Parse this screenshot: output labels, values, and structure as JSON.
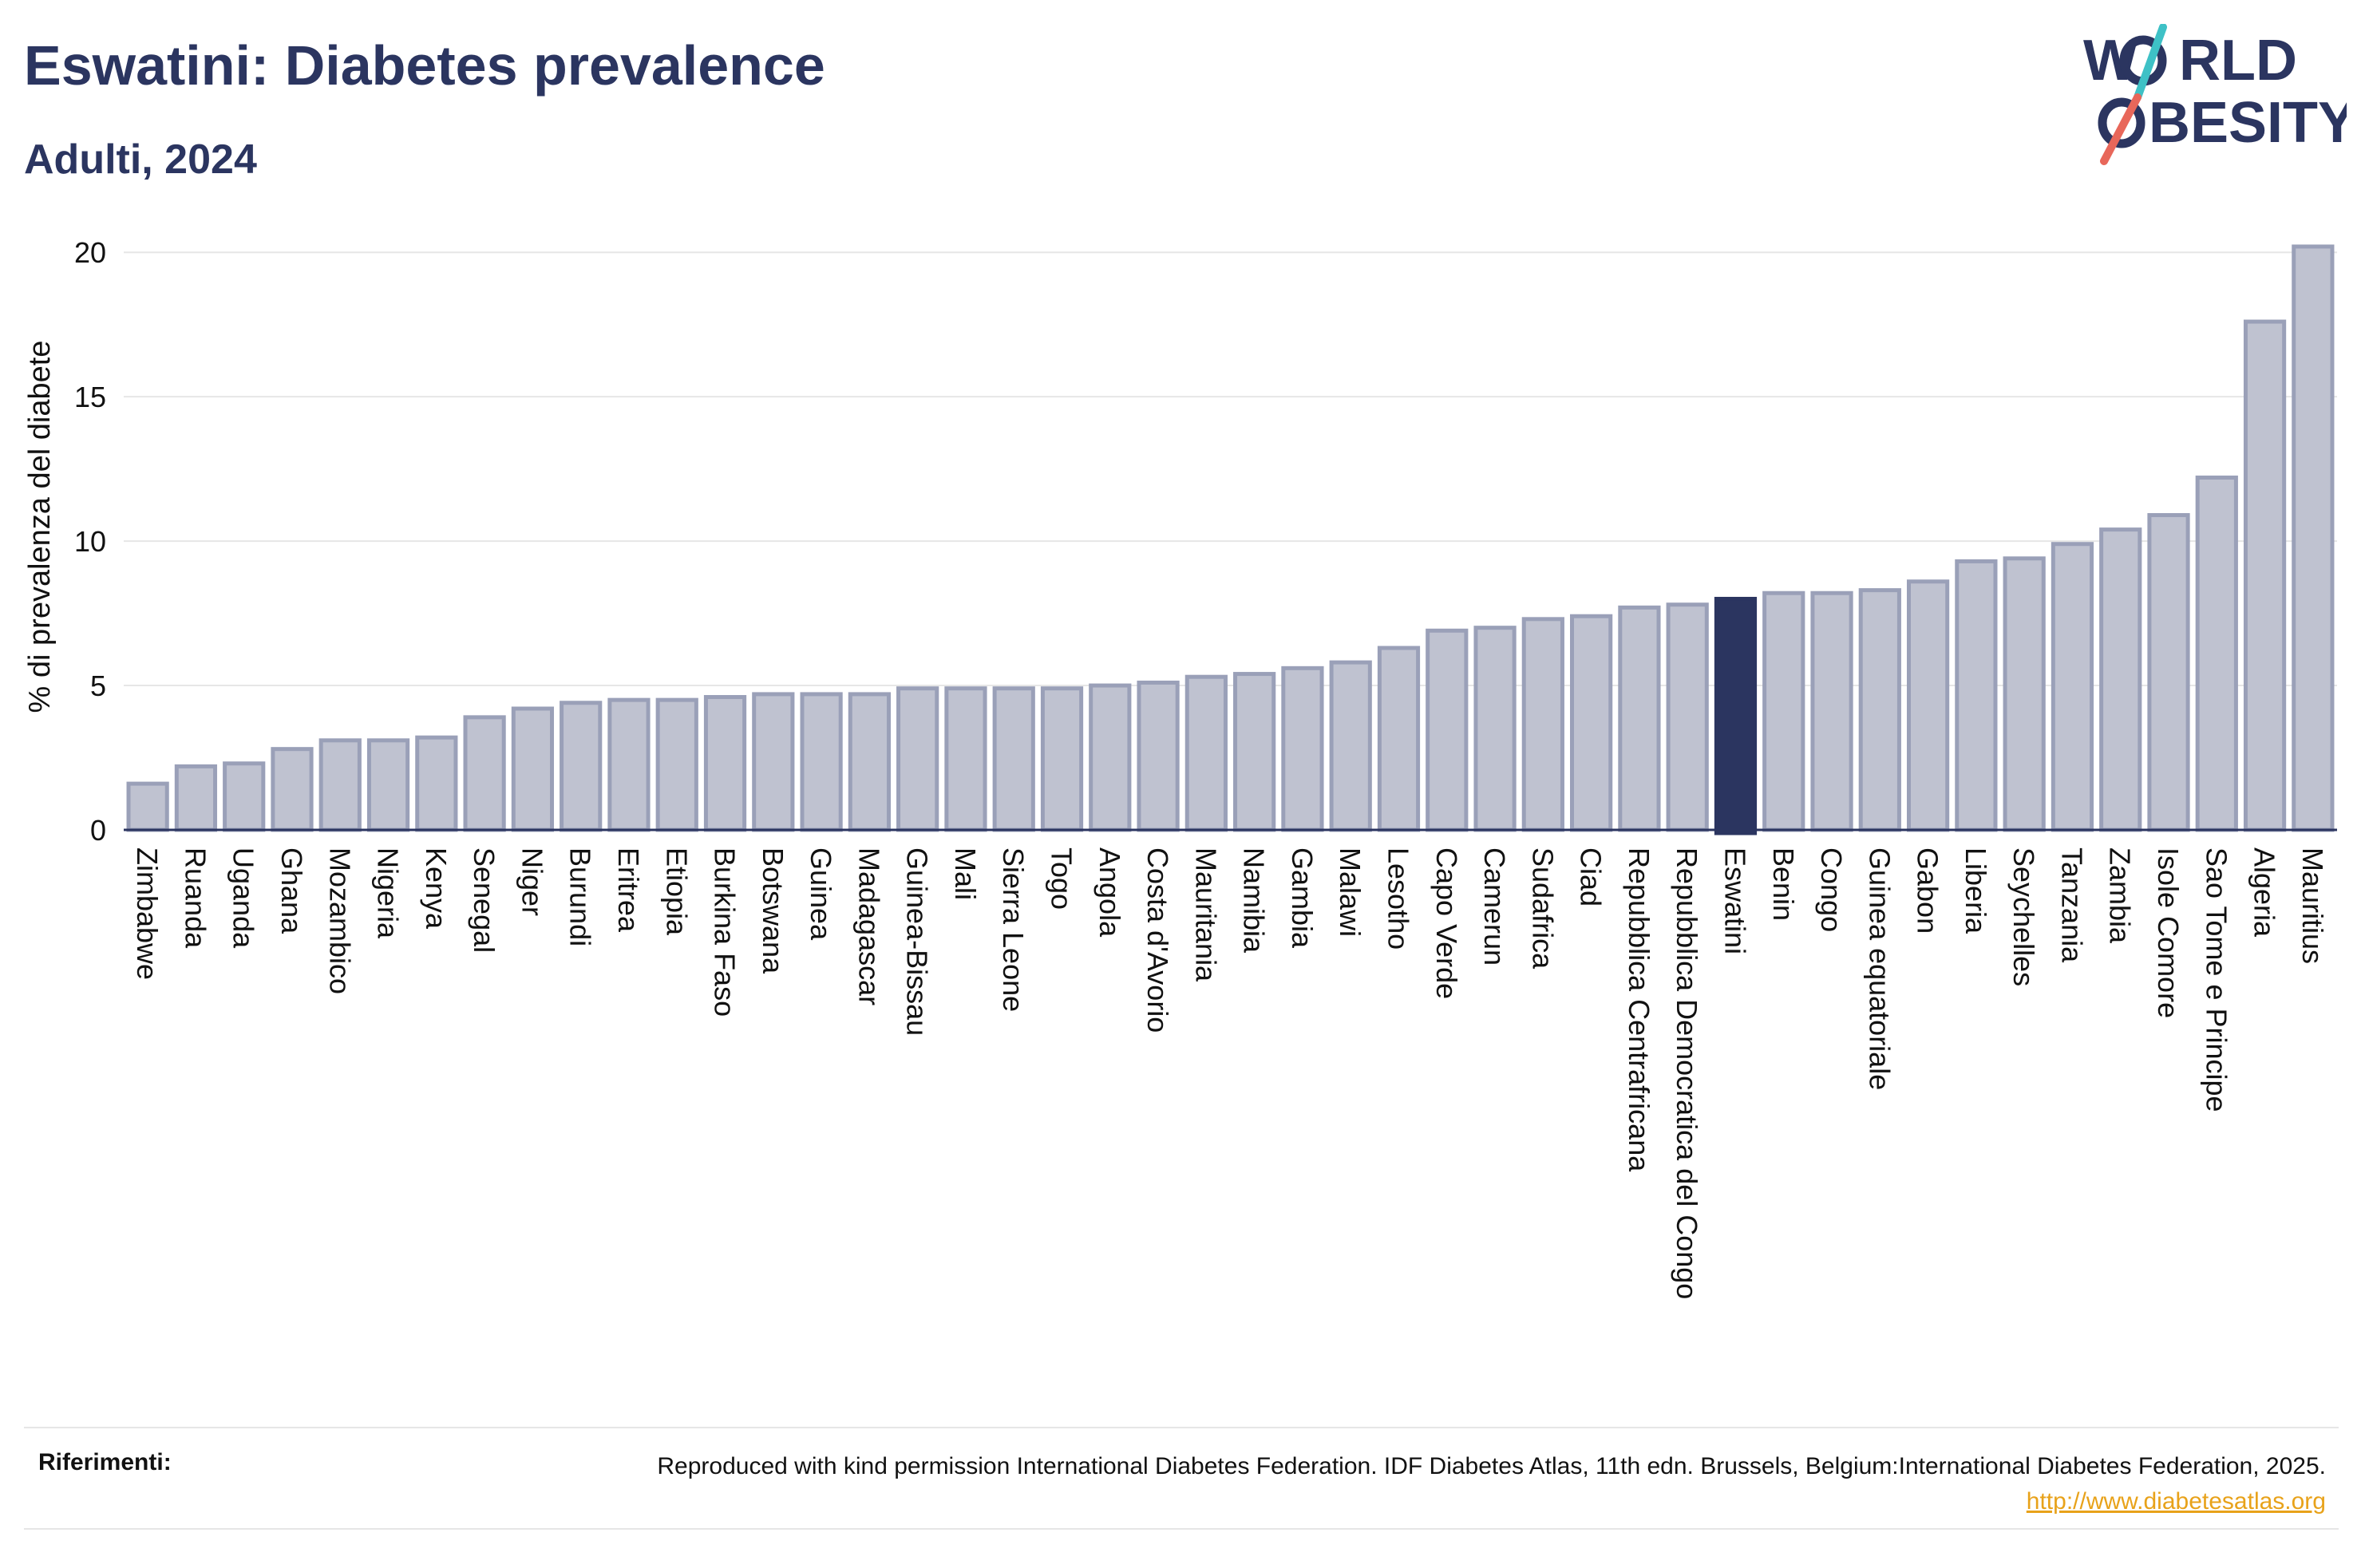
{
  "header": {
    "title": "Eswatini: Diabetes prevalence",
    "subtitle": "Adulti, 2024"
  },
  "logo": {
    "line1": "W",
    "line1b": "RLD",
    "line2": "BESITY",
    "text_color": "#2b3560",
    "slash_colors": [
      "#3ec1c6",
      "#e8675a"
    ]
  },
  "chart_data": {
    "type": "bar",
    "ylabel": "% di prevalenza del diabete",
    "xlabel": "",
    "ylim": [
      0,
      21
    ],
    "yticks": [
      0,
      5,
      10,
      15,
      20
    ],
    "grid": true,
    "highlight": "Eswatini",
    "bar_color": "#bfc2d0",
    "bar_edge_color": "#9aa0b8",
    "highlight_color": "#2b3560",
    "categories": [
      "Zimbabwe",
      "Ruanda",
      "Uganda",
      "Ghana",
      "Mozambico",
      "Nigeria",
      "Kenya",
      "Senegal",
      "Niger",
      "Burundi",
      "Eritrea",
      "Etiopia",
      "Burkina Faso",
      "Botswana",
      "Guinea",
      "Madagascar",
      "Guinea-Bissau",
      "Mali",
      "Sierra Leone",
      "Togo",
      "Angola",
      "Costa d'Avorio",
      "Mauritania",
      "Namibia",
      "Gambia",
      "Malawi",
      "Lesotho",
      "Capo Verde",
      "Camerun",
      "Sudafrica",
      "Ciad",
      "Repubblica Centrafricana",
      "Repubblica Democratica del Congo",
      "Eswatini",
      "Benin",
      "Congo",
      "Guinea equatoriale",
      "Gabon",
      "Liberia",
      "Seychelles",
      "Tanzania",
      "Zambia",
      "Isole Comore",
      "Sao Tome e Principe",
      "Algeria",
      "Mauritius"
    ],
    "values": [
      1.6,
      2.2,
      2.3,
      2.8,
      3.1,
      3.1,
      3.2,
      3.9,
      4.2,
      4.4,
      4.5,
      4.5,
      4.6,
      4.7,
      4.7,
      4.7,
      4.9,
      4.9,
      4.9,
      4.9,
      5.0,
      5.1,
      5.3,
      5.4,
      5.6,
      5.8,
      6.3,
      6.9,
      7.0,
      7.3,
      7.4,
      7.7,
      7.8,
      8.0,
      8.2,
      8.2,
      8.3,
      8.6,
      9.3,
      9.4,
      9.9,
      10.4,
      10.9,
      12.2,
      17.6,
      20.2
    ]
  },
  "footer": {
    "label": "Riferimenti:",
    "text": "Reproduced with kind permission International Diabetes Federation. IDF Diabetes Atlas, 11th edn. Brussels, Belgium:International Diabetes Federation, 2025. ",
    "link": "http://www.diabetesatlas.org"
  }
}
